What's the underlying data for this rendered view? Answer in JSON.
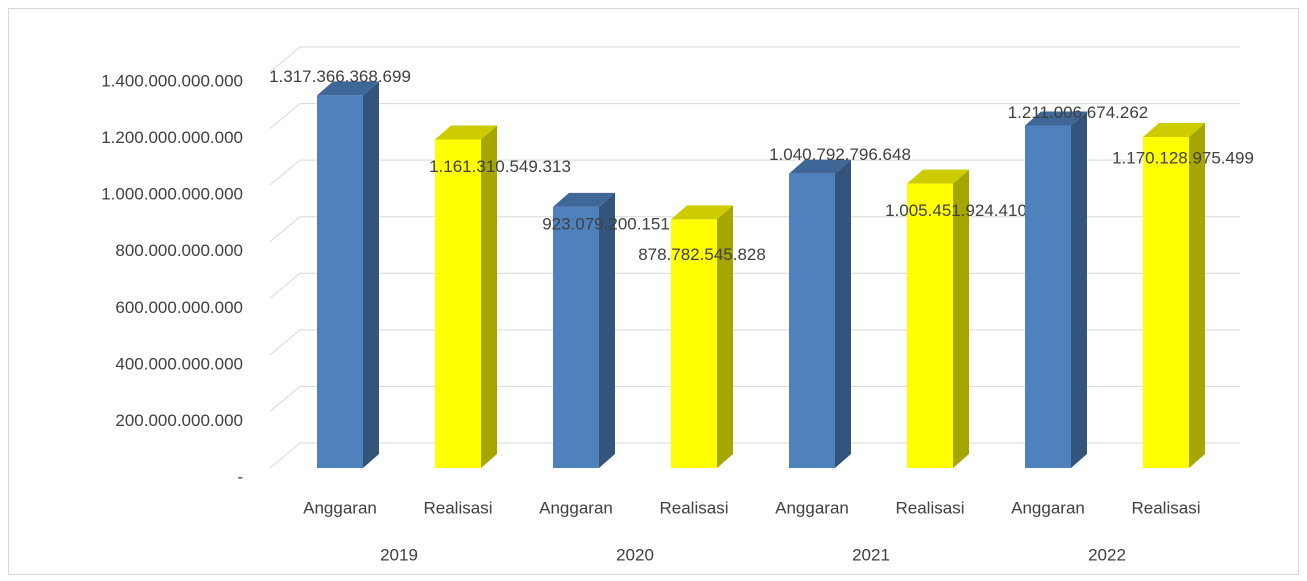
{
  "chart_data": {
    "type": "bar3d",
    "categories": [
      "Anggaran",
      "Realisasi",
      "Anggaran",
      "Realisasi",
      "Anggaran",
      "Realisasi",
      "Anggaran",
      "Realisasi"
    ],
    "groups": [
      "2019",
      "2020",
      "2021",
      "2022"
    ],
    "values": [
      1317366368699,
      1161310549313,
      923079200151,
      878782545828,
      1040792796648,
      1005451924410,
      1211006674262,
      1170128975499
    ],
    "value_labels": [
      "1.317.366.368.699",
      "1.161.310.549.313",
      "923.079.200.151",
      "878.782.545.828",
      "1.040.792.796.648",
      "1.005.451.924.410",
      "1.211.006.674.262",
      "1.170.128.975.499"
    ],
    "colors": [
      "#4f81bd",
      "#ffff00",
      "#4f81bd",
      "#ffff00",
      "#4f81bd",
      "#ffff00",
      "#4f81bd",
      "#ffff00"
    ],
    "ylim": [
      0,
      1400000000000
    ],
    "yticks": [
      {
        "value": 0,
        "label": "-"
      },
      {
        "value": 200000000000,
        "label": "200.000.000.000"
      },
      {
        "value": 400000000000,
        "label": "400.000.000.000"
      },
      {
        "value": 600000000000,
        "label": "600.000.000.000"
      },
      {
        "value": 800000000000,
        "label": "800.000.000.000"
      },
      {
        "value": 1000000000000,
        "label": "1.000.000.000.000"
      },
      {
        "value": 1200000000000,
        "label": "1.200.000.000.000"
      },
      {
        "value": 1400000000000,
        "label": "1.400.000.000.000"
      }
    ],
    "grid": true
  }
}
